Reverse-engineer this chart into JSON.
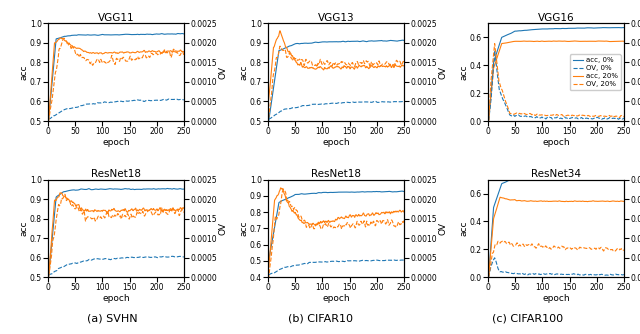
{
  "titles_row1": [
    "VGG11",
    "VGG13",
    "VGG16"
  ],
  "titles_row2": [
    "ResNet18",
    "ResNet18",
    "ResNet34"
  ],
  "subtitles": [
    "(a) SVHN",
    "(b) CIFAR10",
    "(c) CIFAR100"
  ],
  "xlabel": "epoch",
  "ylabel_left": "acc",
  "ylabel_right": "OV",
  "legend_labels": [
    "acc, 0%",
    "OV, 0%",
    "acc, 20%",
    "OV, 20%"
  ],
  "color_blue": "#1f77b4",
  "color_orange": "#ff7f0e",
  "figsize": [
    6.4,
    3.34
  ],
  "dpi": 100
}
